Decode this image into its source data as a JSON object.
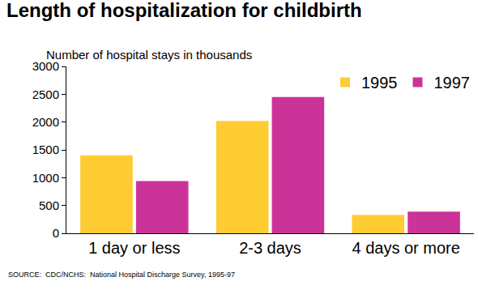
{
  "chart_data": {
    "type": "bar",
    "title": "Length of hospitalization for childbirth",
    "y_label": "Number of hospital stays in thousands",
    "source": "SOURCE:  CDC/NCHS:  National Hospital Discharge Survey, 1995-97",
    "categories": [
      "1 day or less",
      "2-3 days",
      "4 days or more"
    ],
    "series": [
      {
        "name": "1995",
        "color": "#ffcc33",
        "values": [
          1400,
          2020,
          330
        ]
      },
      {
        "name": "1997",
        "color": "#cc3399",
        "values": [
          940,
          2450,
          390
        ]
      }
    ],
    "ylim": [
      0,
      3000
    ],
    "yticks": [
      0,
      500,
      1000,
      1500,
      2000,
      2500,
      3000
    ],
    "grid": false,
    "legend": "top-right"
  }
}
